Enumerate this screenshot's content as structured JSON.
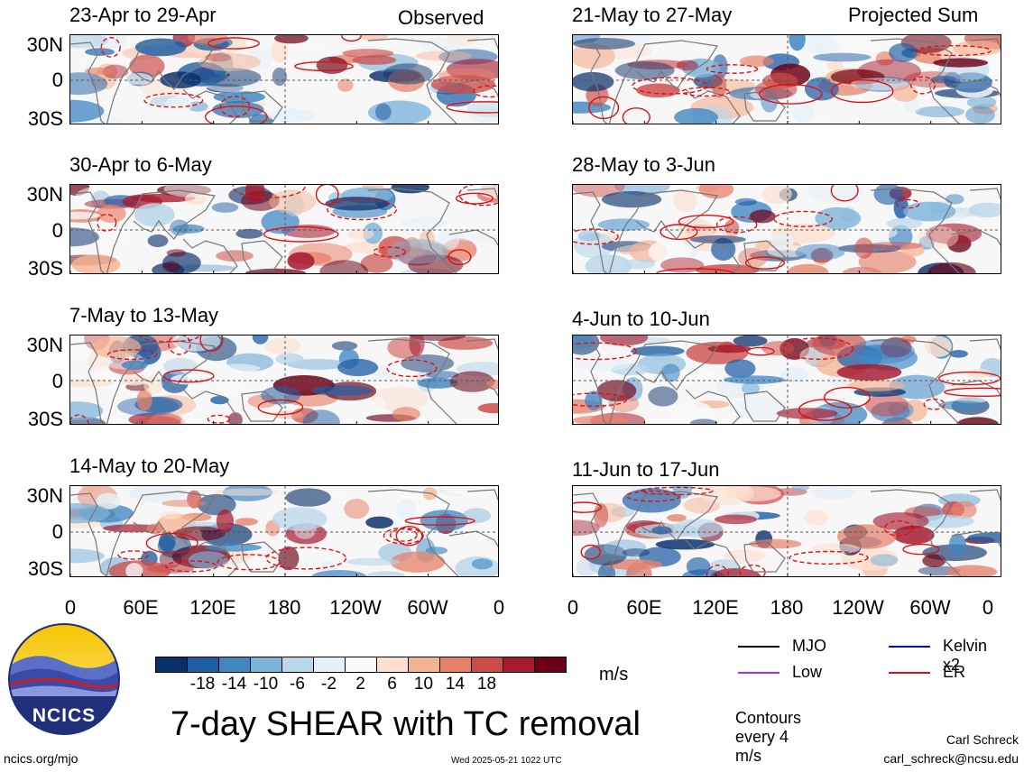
{
  "panels": [
    {
      "title": "23-Apr to 29-Apr",
      "tag": "Observed"
    },
    {
      "title": "21-May to 27-May",
      "tag": "Projected Sum"
    },
    {
      "title": "30-Apr to 6-May",
      "tag": ""
    },
    {
      "title": "28-May to 3-Jun",
      "tag": ""
    },
    {
      "title": "7-May to 13-May",
      "tag": ""
    },
    {
      "title": "4-Jun to 10-Jun",
      "tag": ""
    },
    {
      "title": "14-May to 20-May",
      "tag": ""
    },
    {
      "title": "11-Jun to 17-Jun",
      "tag": ""
    }
  ],
  "lat_labels": [
    "30N",
    "0",
    "30S"
  ],
  "lon_labels": [
    "0",
    "60E",
    "120E",
    "180",
    "120W",
    "60W",
    "0"
  ],
  "colorbar": {
    "unit": "m/s",
    "labels": [
      "-18",
      "-14",
      "-10",
      "-6",
      "-2",
      "2",
      "6",
      "10",
      "14",
      "18"
    ],
    "colors": [
      "#08306b",
      "#1f5fa6",
      "#3f86c3",
      "#7db3da",
      "#b9d6ea",
      "#e6f0f7",
      "#f9f9f9",
      "#fde0cf",
      "#f6b394",
      "#e7826a",
      "#cc4c48",
      "#a6192e",
      "#6b0016"
    ]
  },
  "legend": {
    "mjo": {
      "label": "MJO",
      "color": "#000000"
    },
    "kelvin": {
      "label": "Kelvin x2",
      "color": "#0000cc"
    },
    "low": {
      "label": "Low",
      "color": "#9933ff"
    },
    "er": {
      "label": "ER",
      "color": "#e01010"
    },
    "contours_note": "Contours every 4 m/s"
  },
  "logo": {
    "text": "NCICS"
  },
  "main_title": "7-day SHEAR with TC removal",
  "footer": {
    "url": "ncics.org/mjo",
    "timestamp": "Wed 2025-05-21 1022 UTC",
    "author": "Carl Schreck",
    "email": "carl_schreck@ncsu.edu"
  }
}
